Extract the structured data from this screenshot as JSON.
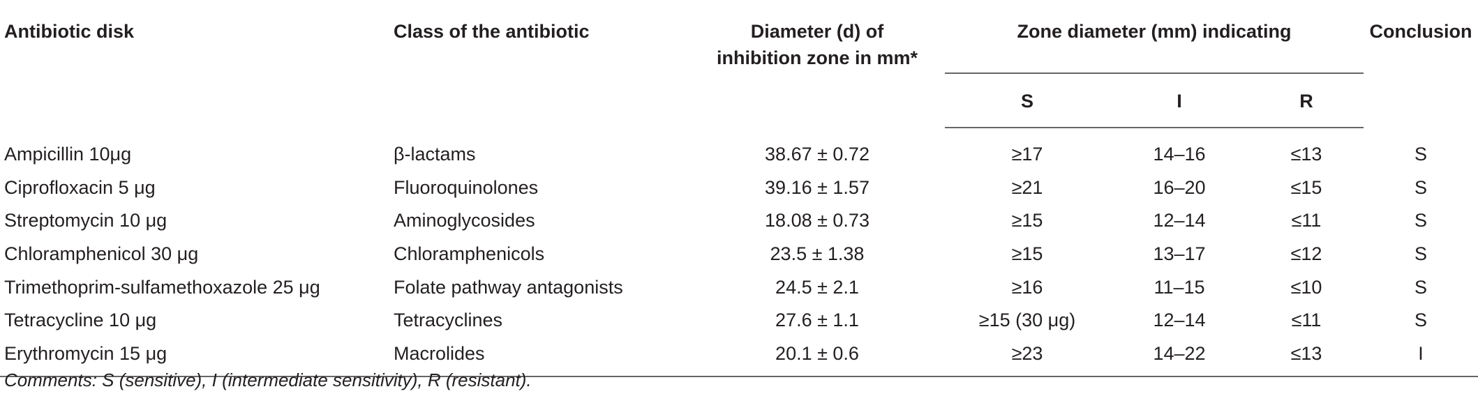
{
  "headers": {
    "antibiotic_disk": "Antibiotic disk",
    "class": "Class of the antibiotic",
    "diameter_line1": "Diameter (d) of",
    "diameter_line2": "inhibition zone in mm*",
    "zone_group": "Zone diameter (mm) indicating",
    "s": "S",
    "i": "I",
    "r": "R",
    "conclusion": "Conclusion"
  },
  "rows": [
    {
      "disk": "Ampicillin 10μg",
      "class": "β-lactams",
      "diameter": "38.67 ± 0.72",
      "s": "≥17",
      "i": "14–16",
      "r": "≤13",
      "conclusion": "S"
    },
    {
      "disk": "Ciprofloxacin 5 μg",
      "class": "Fluoroquinolones",
      "diameter": "39.16 ± 1.57",
      "s": "≥21",
      "i": "16–20",
      "r": "≤15",
      "conclusion": "S"
    },
    {
      "disk": "Streptomycin 10 μg",
      "class": "Aminoglycosides",
      "diameter": "18.08 ± 0.73",
      "s": "≥15",
      "i": "12–14",
      "r": "≤11",
      "conclusion": "S"
    },
    {
      "disk": "Chloramphenicol 30 μg",
      "class": "Chloramphenicols",
      "diameter": "23.5 ± 1.38",
      "s": "≥15",
      "i": "13–17",
      "r": "≤12",
      "conclusion": "S"
    },
    {
      "disk": "Trimethoprim-sulfamethoxazole 25 μg",
      "class": "Folate pathway antagonists",
      "diameter": "24.5 ± 2.1",
      "s": "≥16",
      "i": "11–15",
      "r": "≤10",
      "conclusion": "S"
    },
    {
      "disk": "Tetracycline 10 μg",
      "class": "Tetracyclines",
      "diameter": "27.6 ± 1.1",
      "s": "≥15 (30 μg)",
      "i": "12–14",
      "r": "≤11",
      "conclusion": "S"
    },
    {
      "disk": "Erythromycin 15 μg",
      "class": "Macrolides",
      "diameter": "20.1 ± 0.6",
      "s": "≥23",
      "i": "14–22",
      "r": "≤13",
      "conclusion": "I"
    }
  ],
  "comments": "Comments: S (sensitive), I (intermediate sensitivity), R (resistant)."
}
